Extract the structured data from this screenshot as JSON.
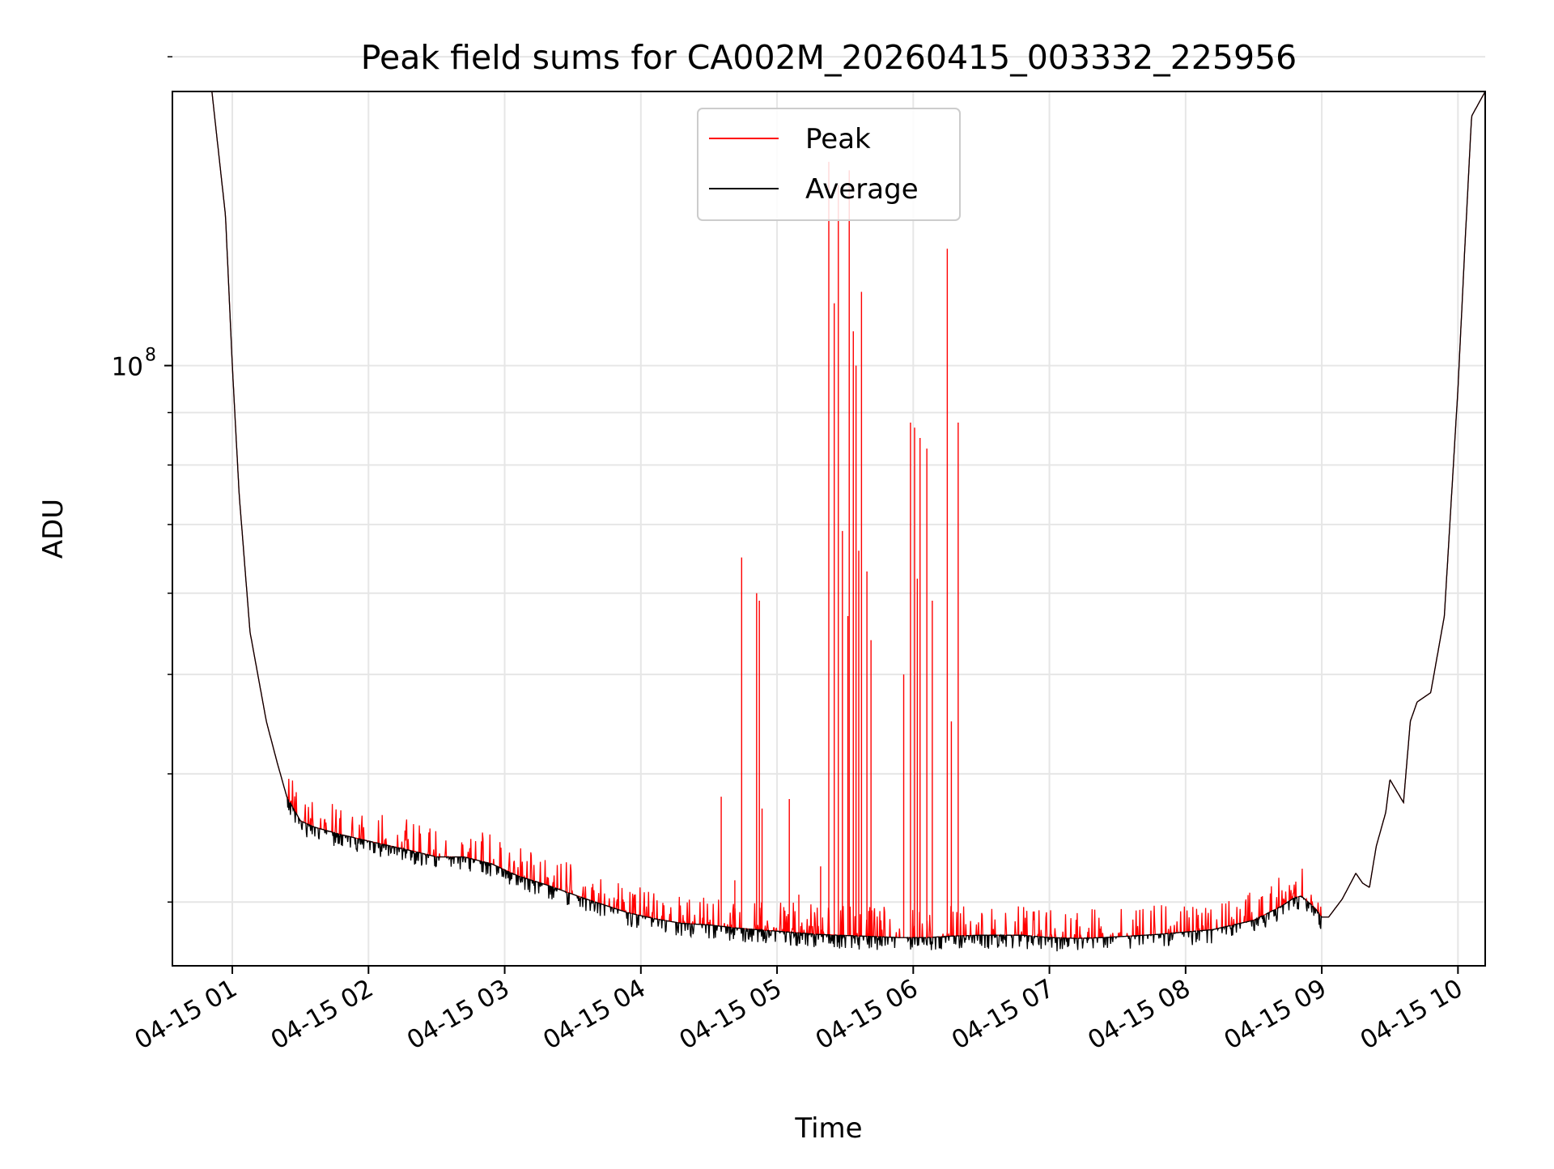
{
  "chart_data": {
    "type": "line",
    "title": "Peak field sums for CA002M_20260415_003332_225956",
    "xlabel": "Time",
    "ylabel": "ADU",
    "yscale": "log",
    "ylim": [
      26000000,
      185000000
    ],
    "xlim_hours": [
      0.56,
      10.2
    ],
    "x_ticks": [
      {
        "value": 1,
        "label": "04-15 01"
      },
      {
        "value": 2,
        "label": "04-15 02"
      },
      {
        "value": 3,
        "label": "04-15 03"
      },
      {
        "value": 4,
        "label": "04-15 04"
      },
      {
        "value": 5,
        "label": "04-15 05"
      },
      {
        "value": 6,
        "label": "04-15 06"
      },
      {
        "value": 7,
        "label": "04-15 07"
      },
      {
        "value": 8,
        "label": "04-15 08"
      },
      {
        "value": 9,
        "label": "04-15 09"
      },
      {
        "value": 10,
        "label": "04-15 10"
      }
    ],
    "y_ticks": [
      {
        "value": 100000000,
        "label": "10",
        "exponent": "8"
      }
    ],
    "y_minor_ticks": [
      30000000,
      40000000,
      50000000,
      60000000,
      70000000,
      80000000,
      90000000,
      200000000
    ],
    "grid": true,
    "legend_position": "top-center",
    "colors": {
      "peak": "#ff0000",
      "average": "#000000",
      "grid": "#e6e6e6"
    },
    "series": [
      {
        "name": "Peak",
        "color": "#ff0000",
        "baseline": {
          "x": [
            0.85,
            0.95,
            1.0,
            1.05,
            1.13,
            1.25,
            1.33,
            1.4,
            1.5,
            1.6,
            1.8,
            2.0,
            2.3,
            2.5,
            2.7,
            2.9,
            3.1,
            3.3,
            3.6,
            3.9,
            4.1,
            4.3,
            4.5,
            4.7,
            5.0,
            5.3,
            5.6,
            5.9,
            6.1,
            6.3,
            6.5,
            6.8,
            7.0,
            7.2,
            7.4,
            7.8,
            8.2,
            8.5,
            8.7,
            8.8,
            8.85,
            8.95,
            9.0,
            9.05,
            9.15,
            9.25,
            9.3,
            9.35,
            9.4,
            9.47,
            9.5,
            9.6,
            9.65,
            9.7,
            9.8,
            9.9,
            10.0,
            10.05,
            10.1,
            10.2
          ],
          "y": [
            185000000,
            140000000,
            100000000,
            75000000,
            55000000,
            45000000,
            41000000,
            38000000,
            36000000,
            35500000,
            34900000,
            34400000,
            33700000,
            33200000,
            33200000,
            32700000,
            31800000,
            31200000,
            30200000,
            29300000,
            28900000,
            28600000,
            28500000,
            28300000,
            28100000,
            27900000,
            27800000,
            27700000,
            27700000,
            27800000,
            27850000,
            27850000,
            27700000,
            27650000,
            27700000,
            27900000,
            28200000,
            28800000,
            29700000,
            30300000,
            30400000,
            29600000,
            29000000,
            29000000,
            30200000,
            32000000,
            31300000,
            31000000,
            34000000,
            36700000,
            39500000,
            37500000,
            45000000,
            47000000,
            48000000,
            57000000,
            95000000,
            130000000,
            175000000,
            185000000
          ]
        },
        "spikes": [
          {
            "x": 4.59,
            "y": 38000000
          },
          {
            "x": 4.74,
            "y": 65000000
          },
          {
            "x": 4.85,
            "y": 60000000
          },
          {
            "x": 4.87,
            "y": 59000000
          },
          {
            "x": 4.89,
            "y": 37000000
          },
          {
            "x": 5.09,
            "y": 37800000
          },
          {
            "x": 5.38,
            "y": 158000000
          },
          {
            "x": 5.42,
            "y": 115000000
          },
          {
            "x": 5.45,
            "y": 150000000
          },
          {
            "x": 5.53,
            "y": 155000000
          },
          {
            "x": 5.56,
            "y": 108000000
          },
          {
            "x": 5.58,
            "y": 100000000
          },
          {
            "x": 5.62,
            "y": 118000000
          },
          {
            "x": 5.66,
            "y": 63000000
          },
          {
            "x": 5.69,
            "y": 54000000
          },
          {
            "x": 5.98,
            "y": 88000000
          },
          {
            "x": 6.01,
            "y": 87000000
          },
          {
            "x": 6.05,
            "y": 85000000
          },
          {
            "x": 6.1,
            "y": 83000000
          },
          {
            "x": 6.14,
            "y": 59000000
          },
          {
            "x": 6.25,
            "y": 130000000
          },
          {
            "x": 6.28,
            "y": 45000000
          },
          {
            "x": 6.33,
            "y": 88000000
          },
          {
            "x": 4.69,
            "y": 31500000
          },
          {
            "x": 5.16,
            "y": 30500000
          },
          {
            "x": 5.32,
            "y": 32500000
          },
          {
            "x": 5.48,
            "y": 69000000
          },
          {
            "x": 5.52,
            "y": 57000000
          },
          {
            "x": 5.6,
            "y": 66000000
          },
          {
            "x": 5.93,
            "y": 50000000
          },
          {
            "x": 6.03,
            "y": 62000000
          }
        ]
      },
      {
        "name": "Average",
        "color": "#000000"
      }
    ]
  }
}
